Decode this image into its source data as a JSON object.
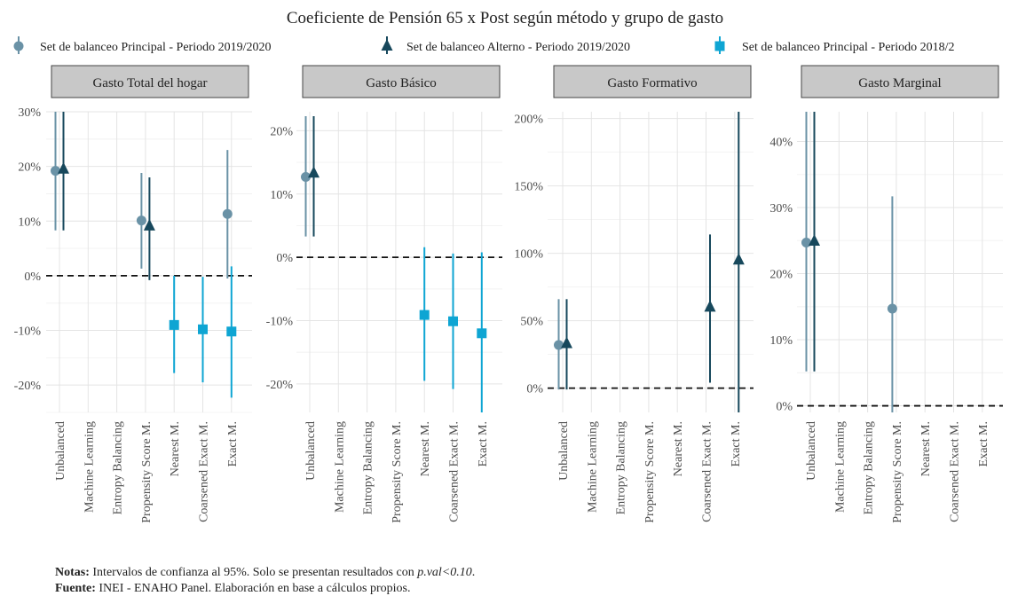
{
  "title": "Coeficiente de Pensión 65 x Post según método y grupo de gasto",
  "legend": [
    {
      "label": "Set de balanceo Principal - Periodo 2019/2020",
      "color": "#6a92a6",
      "shape": "circle"
    },
    {
      "label": "Set de balanceo Alterno - Periodo 2019/2020",
      "color": "#17485c",
      "shape": "triangle"
    },
    {
      "label": "Set de balanceo Principal - Periodo 2018/2",
      "color": "#0ea5d3",
      "shape": "square"
    }
  ],
  "notes": {
    "line1_label": "Notas:",
    "line1_text_a": " Intervalos de confianza al 95%. Solo se presentan resultados con ",
    "line1_italic": "p.val<0.10",
    "line1_text_b": ".",
    "line2_label": "Fuente:",
    "line2_text": " INEI - ENAHO Panel. Elaboración en base a cálculos propios."
  },
  "chart_data": [
    {
      "type": "scatter",
      "title": "Gasto Total del hogar",
      "categories": [
        "Unbalanced",
        "Machine Learning",
        "Entropy Balancing",
        "Propensity Score M.",
        "Nearest M.",
        "Coarsened Exact M.",
        "Exact M."
      ],
      "ylim": [
        -25,
        30
      ],
      "yticks": [
        -20,
        -10,
        0,
        10,
        20,
        30
      ],
      "hline": 0,
      "series": [
        {
          "name": "Set de balanceo Principal - Periodo 2019/2020",
          "points": [
            {
              "category": "Unbalanced",
              "estimate": 19.2,
              "lower": 8.3,
              "upper": 30
            },
            {
              "category": "Propensity Score M.",
              "estimate": 10.1,
              "lower": 1.3,
              "upper": 18.8
            },
            {
              "category": "Exact M.",
              "estimate": 11.3,
              "lower": -0.5,
              "upper": 23
            }
          ]
        },
        {
          "name": "Set de balanceo Alterno - Periodo 2019/2020",
          "points": [
            {
              "category": "Unbalanced",
              "estimate": 19.5,
              "lower": 8.3,
              "upper": 30
            },
            {
              "category": "Propensity Score M.",
              "estimate": 9.1,
              "lower": -0.8,
              "upper": 18
            }
          ]
        },
        {
          "name": "Set de balanceo Principal - Periodo 2018/2",
          "points": [
            {
              "category": "Nearest M.",
              "estimate": -9,
              "lower": -17.8,
              "upper": 0
            },
            {
              "category": "Coarsened Exact M.",
              "estimate": -9.8,
              "lower": -19.5,
              "upper": -0.2
            },
            {
              "category": "Exact M.",
              "estimate": -10.2,
              "lower": -22.3,
              "upper": 1.7
            }
          ]
        }
      ]
    },
    {
      "type": "scatter",
      "title": "Gasto Básico",
      "categories": [
        "Unbalanced",
        "Machine Learning",
        "Entropy Balancing",
        "Propensity Score M.",
        "Nearest M.",
        "Coarsened Exact M.",
        "Exact M."
      ],
      "ylim": [
        -24.5,
        23
      ],
      "yticks": [
        -20,
        -10,
        0,
        10,
        20
      ],
      "hline": 0,
      "series": [
        {
          "name": "Set de balanceo Principal - Periodo 2019/2020",
          "points": [
            {
              "category": "Unbalanced",
              "estimate": 12.7,
              "lower": 3.3,
              "upper": 22.3
            }
          ]
        },
        {
          "name": "Set de balanceo Alterno - Periodo 2019/2020",
          "points": [
            {
              "category": "Unbalanced",
              "estimate": 13.3,
              "lower": 3.3,
              "upper": 22.3
            }
          ]
        },
        {
          "name": "Set de balanceo Principal - Periodo 2018/2",
          "points": [
            {
              "category": "Nearest M.",
              "estimate": -9.1,
              "lower": -19.5,
              "upper": 1.6
            },
            {
              "category": "Coarsened Exact M.",
              "estimate": -10.1,
              "lower": -20.8,
              "upper": 0.6
            },
            {
              "category": "Exact M.",
              "estimate": -12,
              "lower": -24.5,
              "upper": 0.8
            }
          ]
        }
      ]
    },
    {
      "type": "scatter",
      "title": "Gasto Formativo",
      "categories": [
        "Unbalanced",
        "Machine Learning",
        "Entropy Balancing",
        "Propensity Score M.",
        "Nearest M.",
        "Coarsened Exact M.",
        "Exact M."
      ],
      "ylim": [
        -18,
        205
      ],
      "yticks": [
        0,
        50,
        100,
        150,
        200
      ],
      "hline": 0,
      "series": [
        {
          "name": "Set de balanceo Principal - Periodo 2019/2020",
          "points": [
            {
              "category": "Unbalanced",
              "estimate": 32,
              "lower": -1,
              "upper": 66
            }
          ]
        },
        {
          "name": "Set de balanceo Alterno - Periodo 2019/2020",
          "points": [
            {
              "category": "Unbalanced",
              "estimate": 33,
              "lower": -1,
              "upper": 66
            },
            {
              "category": "Coarsened Exact M.",
              "estimate": 60,
              "lower": 4,
              "upper": 114
            },
            {
              "category": "Exact M.",
              "estimate": 95,
              "lower": -18,
              "upper": 205
            }
          ]
        }
      ]
    },
    {
      "type": "scatter",
      "title": "Gasto Marginal",
      "categories": [
        "Unbalanced",
        "Machine Learning",
        "Entropy Balancing",
        "Propensity Score M.",
        "Nearest M.",
        "Coarsened Exact M.",
        "Exact M."
      ],
      "ylim": [
        -1,
        44.5
      ],
      "yticks": [
        0,
        10,
        20,
        30,
        40
      ],
      "hline": 0,
      "series": [
        {
          "name": "Set de balanceo Principal - Periodo 2019/2020",
          "points": [
            {
              "category": "Unbalanced",
              "estimate": 24.7,
              "lower": 5.2,
              "upper": 44.5
            },
            {
              "category": "Propensity Score M.",
              "estimate": 14.7,
              "lower": -1,
              "upper": 31.7
            }
          ]
        },
        {
          "name": "Set de balanceo Alterno - Periodo 2019/2020",
          "points": [
            {
              "category": "Unbalanced",
              "estimate": 24.9,
              "lower": 5.2,
              "upper": 44.5
            }
          ]
        }
      ]
    }
  ]
}
